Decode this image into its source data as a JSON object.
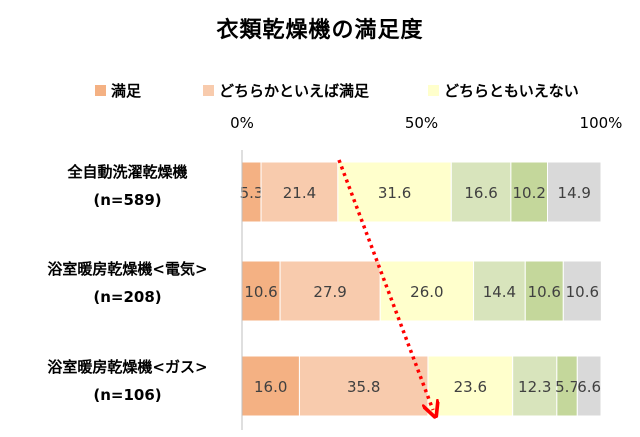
{
  "chart_data": {
    "type": "bar",
    "orientation": "horizontal",
    "stacked": true,
    "percent": true,
    "title": "衣類乾燥機の満足度",
    "xlim": [
      0,
      100
    ],
    "ticks": [
      0,
      50,
      100
    ],
    "tick_labels": [
      "0%",
      "50%",
      "100%"
    ],
    "categories": [
      {
        "name": "全自動洗濯乾燥機",
        "n": "(n=589)"
      },
      {
        "name": "浴室暖房乾燥機<電気>",
        "n": "(n=208)"
      },
      {
        "name": "浴室暖房乾燥機<ガス>",
        "n": "(n=106)"
      }
    ],
    "series": [
      {
        "name": "満足",
        "color": "#f4b183",
        "values": [
          5.3,
          10.6,
          16.0
        ]
      },
      {
        "name": "どちらかといえば満足",
        "color": "#f8cbad",
        "values": [
          21.4,
          27.9,
          35.8
        ]
      },
      {
        "name": "どちらともいえない",
        "color": "#ffffcc",
        "values": [
          31.6,
          26.0,
          23.6
        ]
      },
      {
        "name": "",
        "color": "#d8e4bc",
        "values": [
          16.6,
          14.4,
          12.3
        ]
      },
      {
        "name": "",
        "color": "#c4d79b",
        "values": [
          10.2,
          10.6,
          5.7
        ]
      },
      {
        "name": "",
        "color": "#d9d9d9",
        "values": [
          14.9,
          10.6,
          6.6
        ]
      }
    ],
    "value_labels": [
      [
        "5.3",
        "21.4",
        "31.6",
        "16.6",
        "10.2",
        "14.9"
      ],
      [
        "10.6",
        "27.9",
        "26.0",
        "14.4",
        "10.6",
        "10.6"
      ],
      [
        "16.0",
        "35.8",
        "23.6",
        "12.3",
        "5.7",
        "6.6"
      ]
    ],
    "legend_position": "top",
    "annotation": {
      "type": "arrow",
      "color": "#ff0000",
      "style": "dotted",
      "from": "first bar",
      "to": "third bar"
    }
  }
}
